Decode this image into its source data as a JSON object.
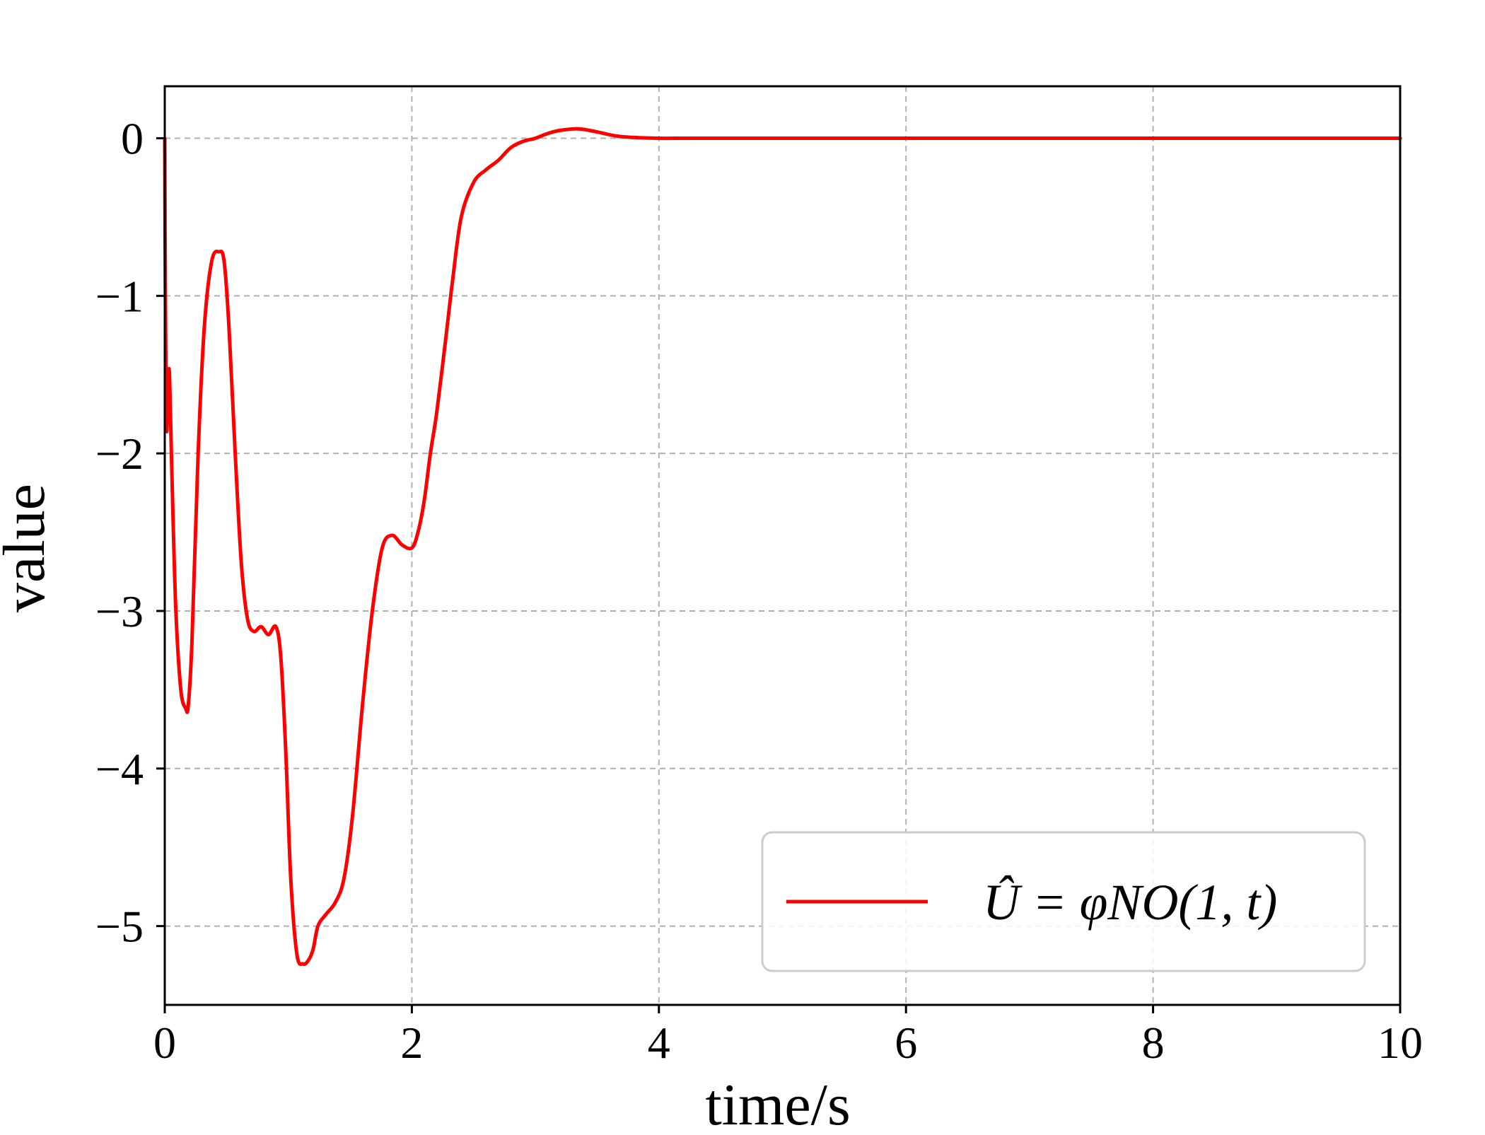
{
  "chart_data": {
    "type": "line",
    "title": "",
    "xlabel": "time/s",
    "ylabel": "value",
    "xlim": [
      0,
      10
    ],
    "ylim": [
      -5.5,
      0.33
    ],
    "xticks": [
      0,
      2,
      4,
      6,
      8,
      10
    ],
    "xtick_labels": [
      "0",
      "2",
      "4",
      "6",
      "8",
      "10"
    ],
    "yticks": [
      0,
      -1,
      -2,
      -3,
      -4,
      -5
    ],
    "ytick_labels": [
      "0",
      "−1",
      "−2",
      "−3",
      "−4",
      "−5"
    ],
    "grid": true,
    "legend_position": "lower-right",
    "series": [
      {
        "name": "Û = φNO(1, t)",
        "color": "#ff0000",
        "x": [
          0,
          0.005,
          0.015,
          0.03,
          0.04,
          0.06,
          0.09,
          0.13,
          0.17,
          0.19,
          0.22,
          0.27,
          0.32,
          0.38,
          0.44,
          0.48,
          0.52,
          0.57,
          0.62,
          0.67,
          0.72,
          0.78,
          0.84,
          0.9,
          0.94,
          0.98,
          1.02,
          1.07,
          1.12,
          1.16,
          1.2,
          1.24,
          1.3,
          1.38,
          1.45,
          1.52,
          1.6,
          1.68,
          1.76,
          1.84,
          1.92,
          2.0,
          2.05,
          2.1,
          2.15,
          2.2,
          2.27,
          2.33,
          2.4,
          2.5,
          2.6,
          2.7,
          2.8,
          2.9,
          3.0,
          3.1,
          3.2,
          3.35,
          3.5,
          3.65,
          3.8,
          4.0,
          4.2,
          4.45,
          4.7,
          5.0,
          5.5,
          6.0,
          7.0,
          8.0,
          10.0
        ],
        "y": [
          0.0,
          -1.0,
          -1.85,
          -1.5,
          -1.55,
          -2.2,
          -3.0,
          -3.5,
          -3.62,
          -3.6,
          -3.2,
          -2.0,
          -1.2,
          -0.78,
          -0.72,
          -0.78,
          -1.2,
          -2.0,
          -2.7,
          -3.05,
          -3.13,
          -3.1,
          -3.15,
          -3.1,
          -3.3,
          -3.9,
          -4.7,
          -5.18,
          -5.24,
          -5.22,
          -5.15,
          -5.0,
          -4.93,
          -4.85,
          -4.7,
          -4.3,
          -3.6,
          -3.0,
          -2.6,
          -2.52,
          -2.58,
          -2.6,
          -2.5,
          -2.3,
          -2.0,
          -1.75,
          -1.3,
          -0.9,
          -0.5,
          -0.28,
          -0.2,
          -0.14,
          -0.06,
          -0.02,
          0.0,
          0.03,
          0.05,
          0.06,
          0.04,
          0.015,
          0.005,
          0.0,
          0.0,
          0.0,
          0.0,
          0.0,
          0.0,
          0.0,
          0.0,
          0.0,
          0.0
        ]
      }
    ]
  }
}
